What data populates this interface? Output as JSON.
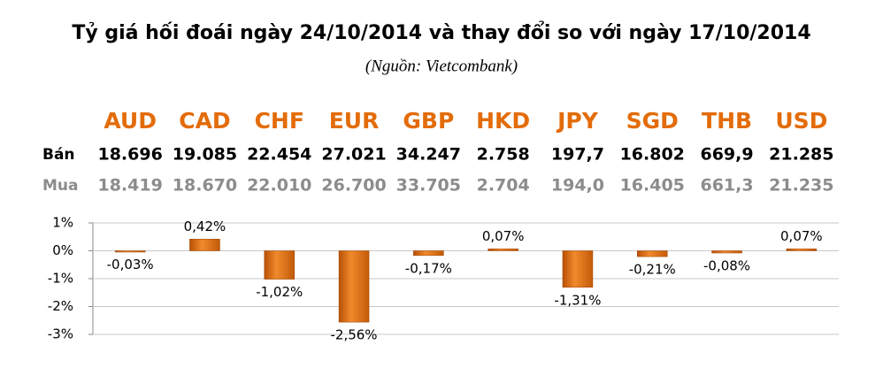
{
  "chart_data": {
    "type": "bar",
    "title": "Tỷ giá hối đoái ngày 24/10/2014 và thay đổi so với ngày 17/10/2014",
    "subtitle": "(Nguồn: Vietcombank)",
    "categories": [
      "AUD",
      "CAD",
      "CHF",
      "EUR",
      "GBP",
      "HKD",
      "JPY",
      "SGD",
      "THB",
      "USD"
    ],
    "values": [
      -0.03,
      0.42,
      -1.02,
      -2.56,
      -0.17,
      0.07,
      -1.31,
      -0.21,
      -0.08,
      0.07
    ],
    "value_labels": [
      "-0,03%",
      "0,42%",
      "-1,02%",
      "-2,56%",
      "-0,17%",
      "0,07%",
      "-1,31%",
      "-0,21%",
      "-0,08%",
      "0,07%"
    ],
    "color": "#e36c09",
    "ylim": [
      -3,
      1
    ],
    "yticks": [
      {
        "value": 1,
        "label": "1%"
      },
      {
        "value": 0,
        "label": "0%"
      },
      {
        "value": -1,
        "label": "-1%"
      },
      {
        "value": -2,
        "label": "-2%"
      },
      {
        "value": -3,
        "label": "-3%"
      }
    ],
    "grid": true
  },
  "table": {
    "rows": [
      {
        "label": "Bán",
        "values": [
          "18.696",
          "19.085",
          "22.454",
          "27.021",
          "34.247",
          "2.758",
          "197,7",
          "16.802",
          "669,9",
          "21.285"
        ]
      },
      {
        "label": "Mua",
        "values": [
          "18.419",
          "18.670",
          "22.010",
          "26.700",
          "33.705",
          "2.704",
          "194,0",
          "16.405",
          "661,3",
          "21.235"
        ]
      }
    ]
  }
}
